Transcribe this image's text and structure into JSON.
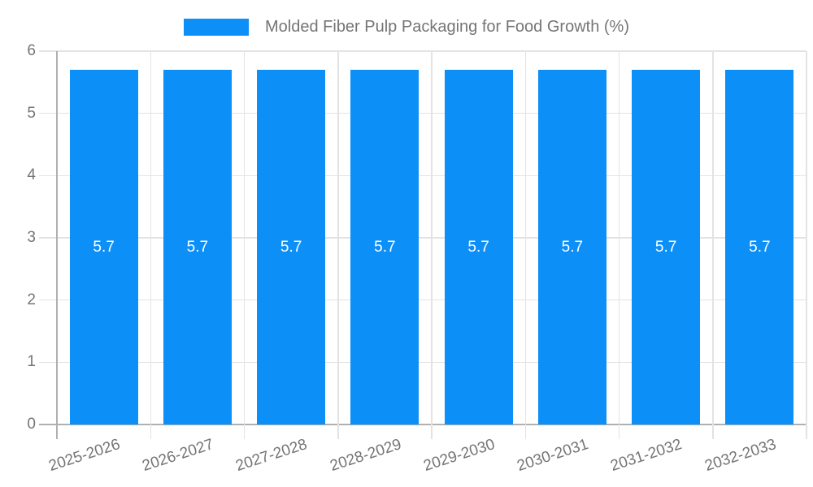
{
  "chart_data": {
    "type": "bar",
    "title": "Molded Fiber Pulp Packaging for Food Growth (%)",
    "categories": [
      "2025-2026",
      "2026-2027",
      "2027-2028",
      "2028-2029",
      "2029-2030",
      "2030-2031",
      "2031-2032",
      "2032-2033"
    ],
    "series": [
      {
        "name": "Molded Fiber Pulp Packaging for Food Growth (%)",
        "values": [
          5.7,
          5.7,
          5.7,
          5.7,
          5.7,
          5.7,
          5.7,
          5.7
        ]
      }
    ],
    "bar_value_labels": [
      "5.7",
      "5.7",
      "5.7",
      "5.7",
      "5.7",
      "5.7",
      "5.7",
      "5.7"
    ],
    "xlabel": "",
    "ylabel": "",
    "ylim": [
      0,
      6
    ],
    "y_ticks": [
      "0",
      "1",
      "2",
      "3",
      "4",
      "5",
      "6"
    ],
    "grid": true,
    "legend_position": "top",
    "x_tick_rotation_deg": -18,
    "colors": {
      "bar": "#0d8ff8",
      "bar_value_label": "#ffffff",
      "axis_text": "#757575",
      "grid_line": "#e3e3e3",
      "axis_line": "#b0b0b0",
      "background": "#ffffff"
    }
  }
}
